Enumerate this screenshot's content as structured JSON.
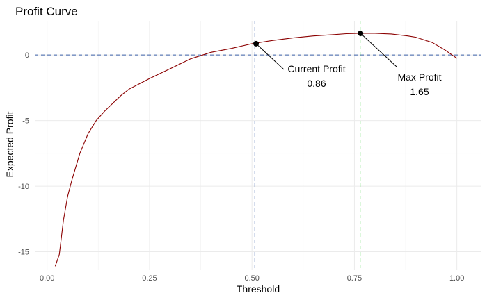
{
  "chart_data": {
    "type": "line",
    "title": "Profit Curve",
    "xlabel": "Threshold",
    "ylabel": "Expected Profit",
    "xlim": [
      -0.03,
      1.06
    ],
    "ylim": [
      -16.4,
      2.6
    ],
    "x_ticks": [
      0.0,
      0.25,
      0.5,
      0.75,
      1.0
    ],
    "x_tick_labels": [
      "0.00",
      "0.25",
      "0.50",
      "0.75",
      "1.00"
    ],
    "y_ticks": [
      -15,
      -10,
      -5,
      0
    ],
    "y_tick_labels": [
      "-15",
      "-10",
      "-5",
      "0"
    ],
    "grid": true,
    "series": [
      {
        "color": "#8b0000",
        "x": [
          0.02,
          0.03,
          0.04,
          0.05,
          0.06,
          0.08,
          0.1,
          0.12,
          0.14,
          0.16,
          0.18,
          0.2,
          0.25,
          0.3,
          0.35,
          0.4,
          0.45,
          0.5,
          0.55,
          0.6,
          0.65,
          0.7,
          0.73,
          0.76,
          0.8,
          0.84,
          0.88,
          0.9,
          0.94,
          0.97,
          1.0
        ],
        "y": [
          -16.1,
          -15.2,
          -12.6,
          -10.8,
          -9.6,
          -7.5,
          -6.0,
          -5.0,
          -4.3,
          -3.7,
          -3.1,
          -2.6,
          -1.8,
          -1.05,
          -0.3,
          0.2,
          0.5,
          0.86,
          1.1,
          1.3,
          1.45,
          1.55,
          1.62,
          1.65,
          1.65,
          1.6,
          1.45,
          1.35,
          0.95,
          0.4,
          -0.25
        ]
      }
    ],
    "reference_lines": {
      "horizontal": [
        {
          "y": 0,
          "color": "#3a5fa8",
          "style": "dashed"
        }
      ],
      "vertical": [
        {
          "x": 0.507,
          "color": "#3a5fa8",
          "style": "dashed"
        },
        {
          "x": 0.764,
          "color": "#22cc22",
          "style": "dashed"
        }
      ]
    },
    "annotations": [
      {
        "point": [
          0.51,
          0.86
        ],
        "label": "Current Profit",
        "value": "0.86"
      },
      {
        "point": [
          0.765,
          1.65
        ],
        "label": "Max Profit",
        "value": "1.65"
      }
    ]
  }
}
